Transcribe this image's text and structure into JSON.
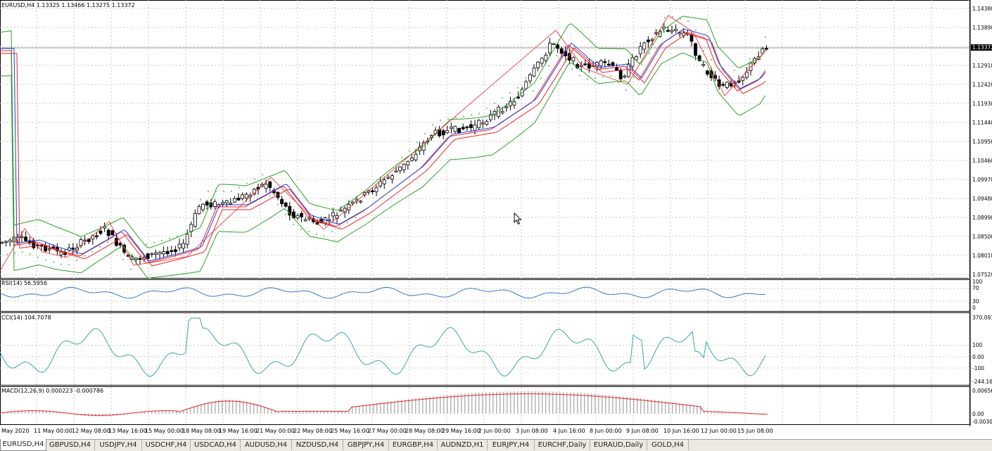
{
  "main_chart": {
    "header": "EURUSD,H4  1.13325 1.13466 1.13275 1.13372",
    "current_price": "1.13372",
    "price_scale": [
      "1.14380",
      "1.13890",
      "1.12910",
      "1.12420",
      "1.11930",
      "1.11440",
      "1.10950",
      "1.10460",
      "1.09970",
      "1.09480",
      "1.08990",
      "1.08500",
      "1.08010",
      "1.07520"
    ]
  },
  "rsi_pane": {
    "header": "RSI(14) 56.5956",
    "scale": [
      "100",
      "70",
      "30",
      "0"
    ]
  },
  "cci_pane": {
    "header": "CCI(14) 104.7078",
    "scale": [
      "370.091",
      "100",
      "0.00",
      "-100",
      "-244.165"
    ]
  },
  "macd_pane": {
    "header": "MACD(12,26,9) 0.000223 -0.000786",
    "scale": [
      "0.00656",
      "0.00",
      "-0.00308"
    ]
  },
  "time_axis": [
    "May 2020",
    "11 May 00:00",
    "12 May 08:00",
    "13 May 16:00",
    "15 May 00:00",
    "18 May 08:00",
    "19 May 16:00",
    "21 May 00:00",
    "22 May 08:00",
    "25 May 16:00",
    "27 May 00:00",
    "28 May 08:00",
    "29 May 16:00",
    "2 Jun 00:00",
    "3 Jun 08:00",
    "4 Jun 16:00",
    "8 Jun 00:00",
    "9 Jun 08:00",
    "10 Jun 16:00",
    "12 Jun 00:00",
    "15 Jun 08:00"
  ],
  "tabs": [
    "EURUSD,H4",
    "GBPUSD,H4",
    "USDJPY,H4",
    "USDCHF,H4",
    "USDCAD,H4",
    "AUDUSD,H4",
    "NZDUSD,H4",
    "GBPJPY,H4",
    "EURGBP,H4",
    "AUDNZD,H1",
    "EURJPY,H4",
    "EURCHF,Daily",
    "EURAUD,Daily",
    "GOLD,H4"
  ],
  "active_tab": "EURUSD,H4",
  "colors": {
    "grid": "#c8c8c8",
    "bull_candle": "#ffffff",
    "bear_candle": "#000000",
    "bollinger": "#2ca02c",
    "ma_red": "#e8262a",
    "ma_blue": "#2040e0",
    "zigzag": "#e8262a",
    "sar": "#7ccf7c",
    "rsi": "#3a78c8",
    "cci": "#3aa6a6",
    "macd_hist": "#b4b4b4",
    "macd_signal": "#e8262a"
  },
  "icons": [
    "mouse-pointer-icon"
  ]
}
